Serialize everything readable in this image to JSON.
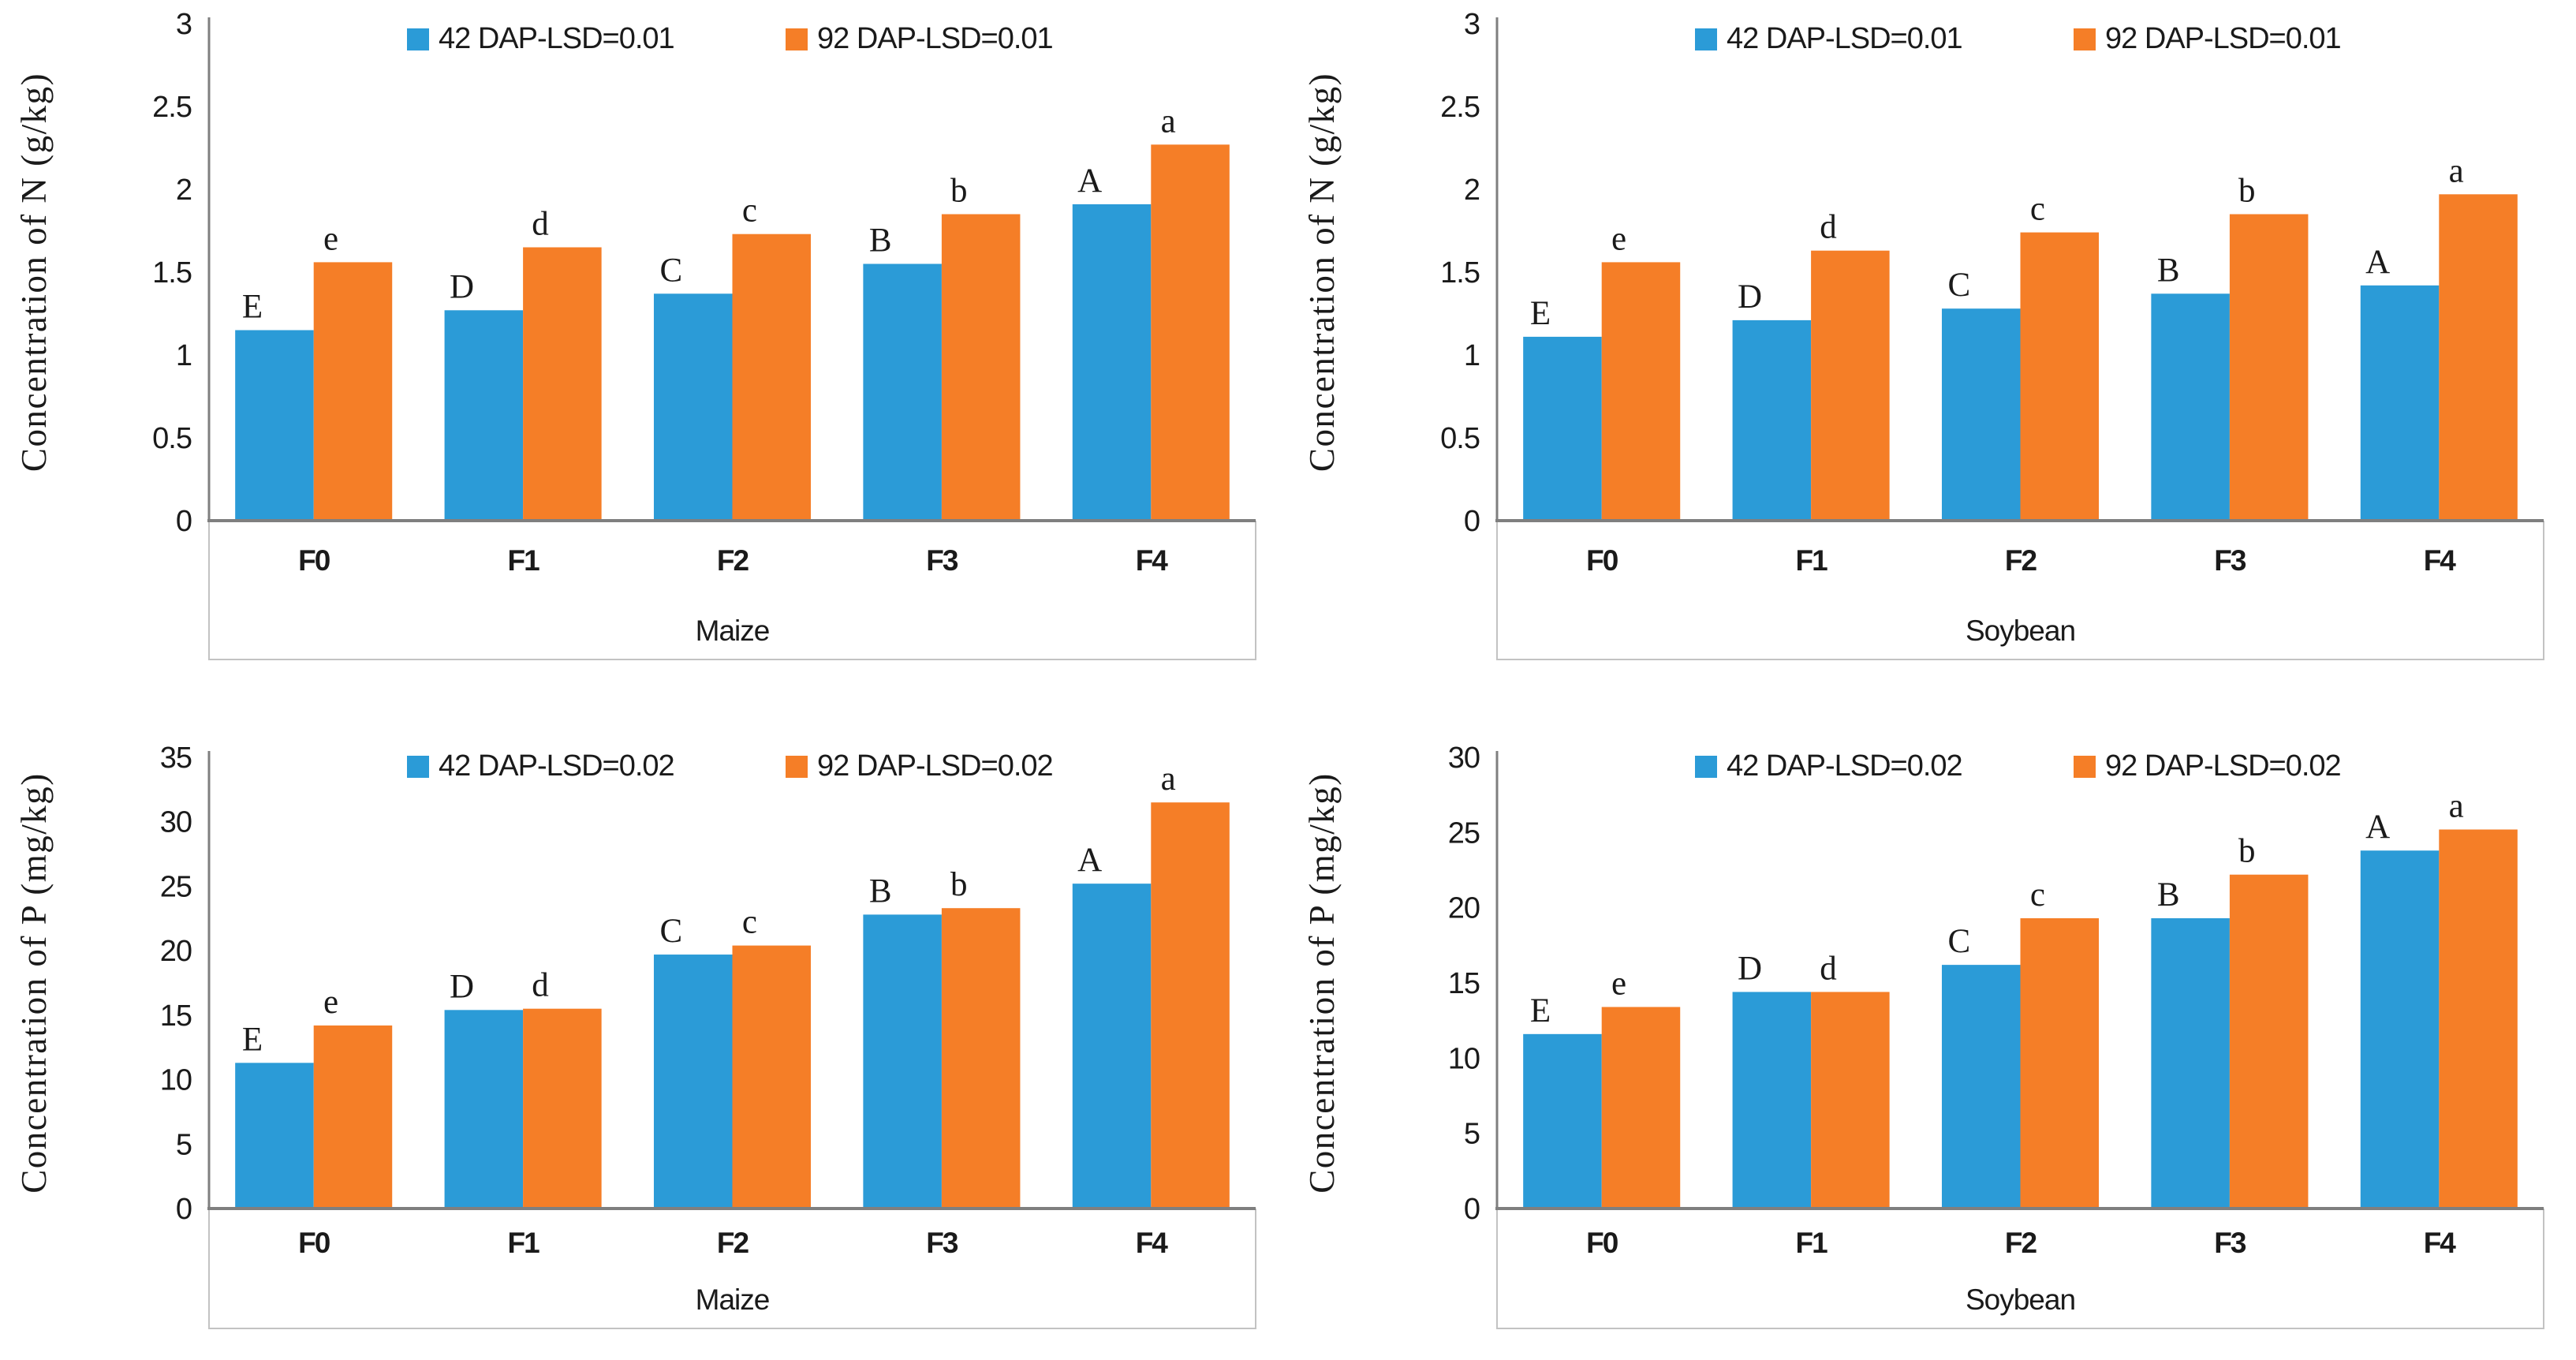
{
  "colors": {
    "series_42dap": "#2B9BD7",
    "series_92dap": "#F57E27",
    "axis_line": "#7F7F7F",
    "frame_line": "#C3C3C3",
    "label_text": "#1A1A1A"
  },
  "chart_data": [
    {
      "id": "n-maize",
      "type": "bar",
      "title": "",
      "ylabel": "Concentration of N (g/kg)",
      "xlabel": "Maize",
      "ylim": [
        0,
        3
      ],
      "ytick_step": 0.5,
      "ytick_labels": [
        "0",
        "0.5",
        "1",
        "1.5",
        "2",
        "2.5",
        "3"
      ],
      "categories": [
        "F0",
        "F1",
        "F2",
        "F3",
        "F4"
      ],
      "legend_position": "top",
      "grid": false,
      "series": [
        {
          "name": "42 DAP-LSD=0.01",
          "color": "#2B9BD7",
          "values": [
            1.15,
            1.27,
            1.37,
            1.55,
            1.91
          ],
          "bar_labels": [
            "E",
            "D",
            "C",
            "B",
            "A"
          ]
        },
        {
          "name": "92 DAP-LSD=0.01",
          "color": "#F57E27",
          "values": [
            1.56,
            1.65,
            1.73,
            1.85,
            2.27
          ],
          "bar_labels": [
            "e",
            "d",
            "c",
            "b",
            "a"
          ]
        }
      ]
    },
    {
      "id": "n-soybean",
      "type": "bar",
      "title": "",
      "ylabel": "Concentration of N (g/kg)",
      "xlabel": "Soybean",
      "ylim": [
        0,
        3
      ],
      "ytick_step": 0.5,
      "ytick_labels": [
        "0",
        "0.5",
        "1",
        "1.5",
        "2",
        "2.5",
        "3"
      ],
      "categories": [
        "F0",
        "F1",
        "F2",
        "F3",
        "F4"
      ],
      "legend_position": "top",
      "grid": false,
      "series": [
        {
          "name": "42 DAP-LSD=0.01",
          "color": "#2B9BD7",
          "values": [
            1.11,
            1.21,
            1.28,
            1.37,
            1.42
          ],
          "bar_labels": [
            "E",
            "D",
            "C",
            "B",
            "A"
          ]
        },
        {
          "name": "92 DAP-LSD=0.01",
          "color": "#F57E27",
          "values": [
            1.56,
            1.63,
            1.74,
            1.85,
            1.97
          ],
          "bar_labels": [
            "e",
            "d",
            "c",
            "b",
            "a"
          ]
        }
      ]
    },
    {
      "id": "p-maize",
      "type": "bar",
      "title": "",
      "ylabel": "Concentration of P (mg/kg)",
      "xlabel": "Maize",
      "ylim": [
        0,
        35
      ],
      "ytick_step": 5,
      "ytick_labels": [
        "0",
        "5",
        "10",
        "15",
        "20",
        "25",
        "30",
        "35"
      ],
      "categories": [
        "F0",
        "F1",
        "F2",
        "F3",
        "F4"
      ],
      "legend_position": "top",
      "grid": false,
      "series": [
        {
          "name": "42 DAP-LSD=0.02",
          "color": "#2B9BD7",
          "values": [
            11.3,
            15.4,
            19.7,
            22.8,
            25.2
          ],
          "bar_labels": [
            "E",
            "D",
            "C",
            "B",
            "A"
          ]
        },
        {
          "name": "92 DAP-LSD=0.02",
          "color": "#F57E27",
          "values": [
            14.2,
            15.5,
            20.4,
            23.3,
            31.5
          ],
          "bar_labels": [
            "e",
            "d",
            "c",
            "b",
            "a"
          ]
        }
      ]
    },
    {
      "id": "p-soybean",
      "type": "bar",
      "title": "",
      "ylabel": "Concentration of P (mg/kg)",
      "xlabel": "Soybean",
      "ylim": [
        0,
        30
      ],
      "ytick_step": 5,
      "ytick_labels": [
        "0",
        "5",
        "10",
        "15",
        "20",
        "25",
        "30"
      ],
      "categories": [
        "F0",
        "F1",
        "F2",
        "F3",
        "F4"
      ],
      "legend_position": "top",
      "grid": false,
      "series": [
        {
          "name": "42 DAP-LSD=0.02",
          "color": "#2B9BD7",
          "values": [
            11.6,
            14.4,
            16.2,
            19.3,
            23.8
          ],
          "bar_labels": [
            "E",
            "D",
            "C",
            "B",
            "A"
          ]
        },
        {
          "name": "92 DAP-LSD=0.02",
          "color": "#F57E27",
          "values": [
            13.4,
            14.4,
            19.3,
            22.2,
            25.2
          ],
          "bar_labels": [
            "e",
            "d",
            "c",
            "b",
            "a"
          ]
        }
      ]
    }
  ]
}
